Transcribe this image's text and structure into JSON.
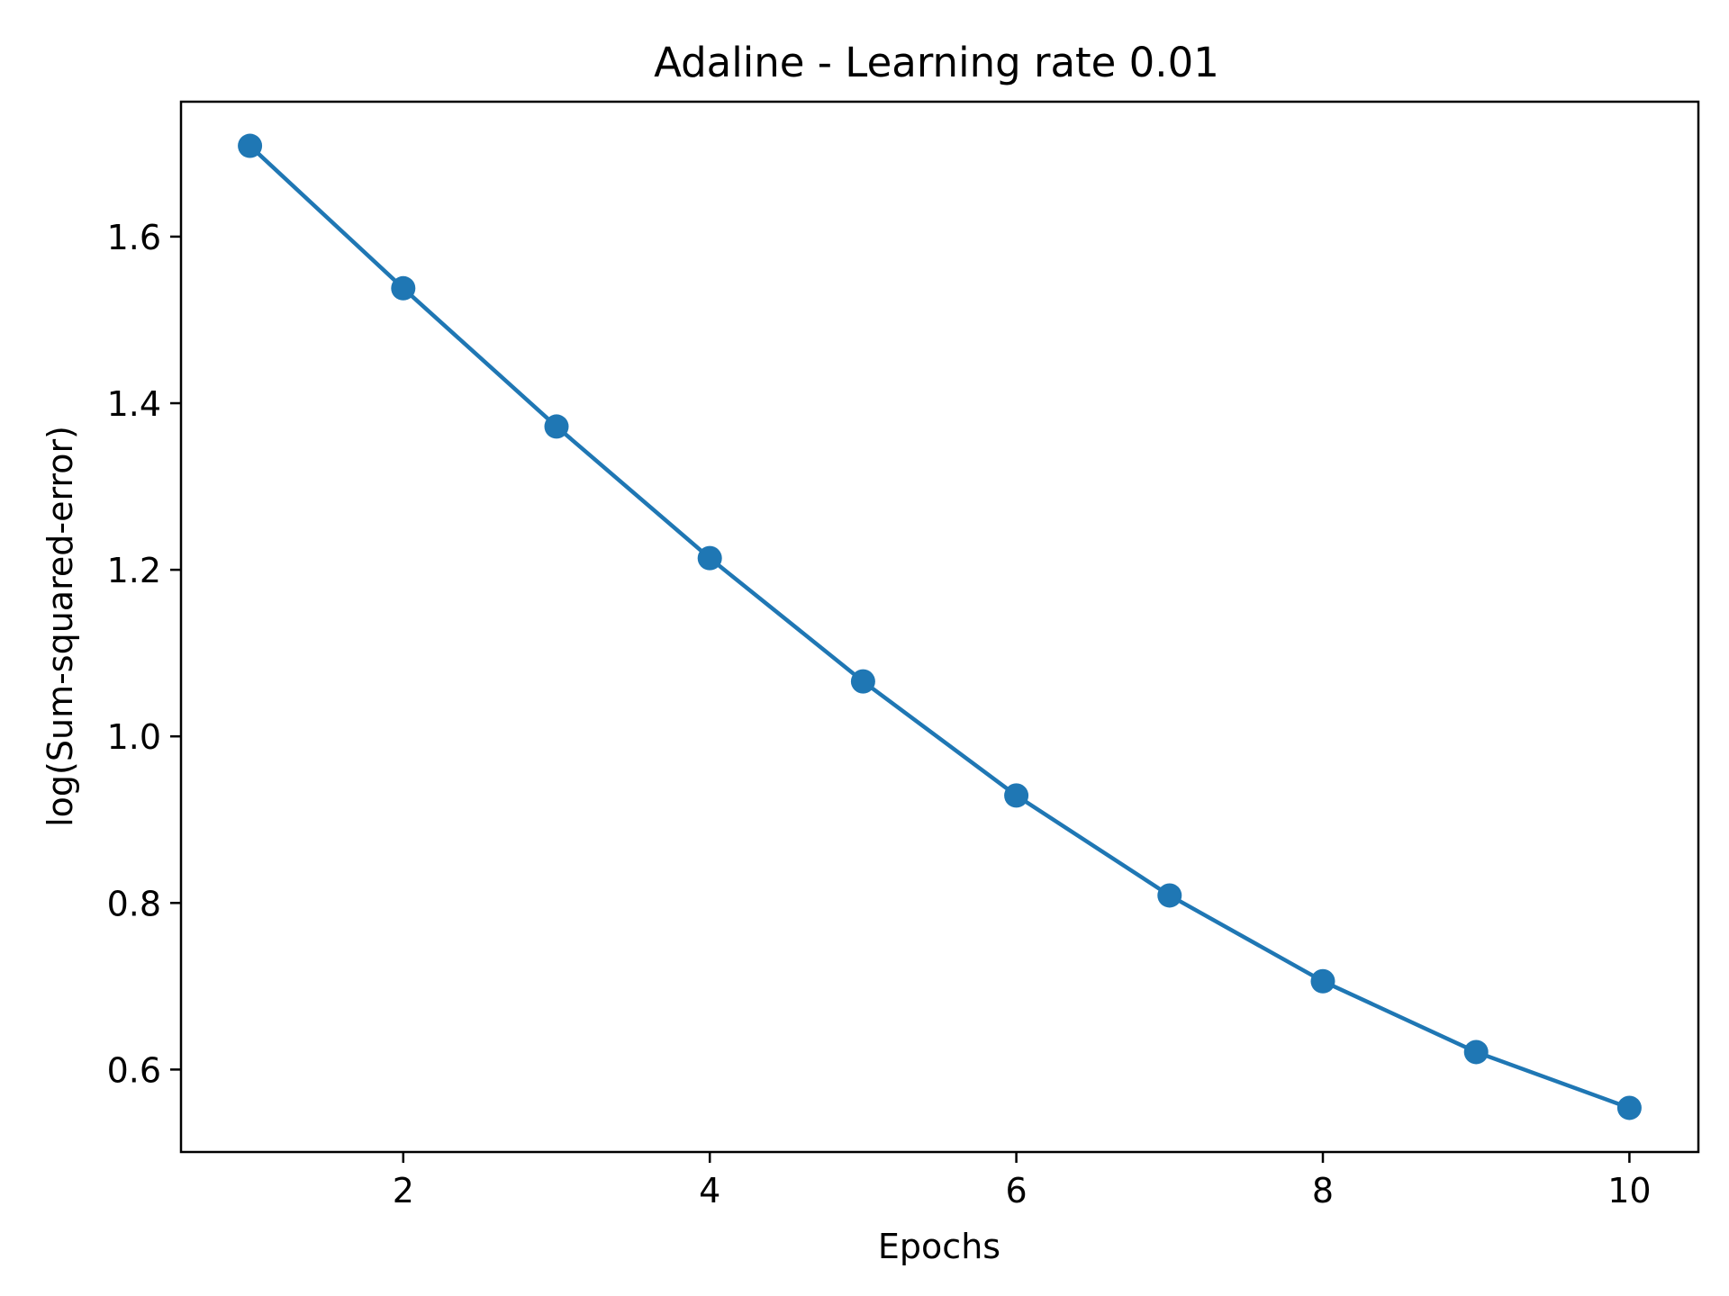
{
  "chart_data": {
    "type": "line",
    "title": "Adaline - Learning rate 0.01",
    "xlabel": "Epochs",
    "ylabel": "log(Sum-squared-error)",
    "x": [
      1,
      2,
      3,
      4,
      5,
      6,
      7,
      8,
      9,
      10
    ],
    "series": [
      {
        "values": [
          1.709,
          1.538,
          1.372,
          1.214,
          1.066,
          0.929,
          0.809,
          0.706,
          0.621,
          0.554
        ]
      }
    ],
    "xlim": [
      0.55,
      10.45
    ],
    "ylim": [
      0.501,
      1.762
    ],
    "xticks": [
      2,
      4,
      6,
      8,
      10
    ],
    "yticks": [
      0.6,
      0.8,
      1.0,
      1.2,
      1.4,
      1.6
    ],
    "xtick_labels": [
      "2",
      "4",
      "6",
      "8",
      "10"
    ],
    "ytick_labels": [
      "0.6",
      "0.8",
      "1.0",
      "1.2",
      "1.4",
      "1.6"
    ],
    "grid": false,
    "legend": "none",
    "line_color": "#1f77b4",
    "marker": "circle"
  }
}
